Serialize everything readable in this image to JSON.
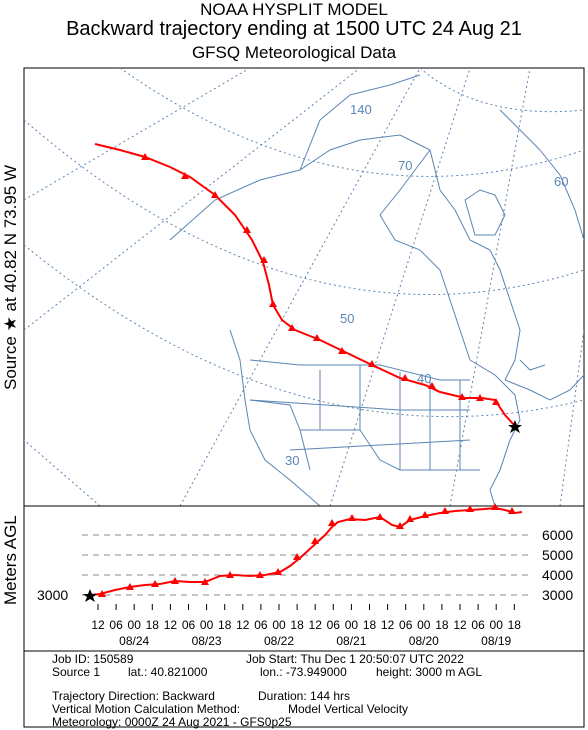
{
  "header": {
    "line1": "NOAA HYSPLIT MODEL",
    "line2": "Backward trajectory ending at 1500 UTC 24 Aug 21",
    "line3": "GFSQ Meteorological Data"
  },
  "source_label": "Source ★ at   40.82 N   73.95 W",
  "map": {
    "lat_labels": [
      "30",
      "40",
      "50",
      "70",
      "60"
    ],
    "lon_label": "140",
    "colors": {
      "coast": "#5b85b5",
      "trajectory": "#ff0000",
      "frame": "#000000"
    }
  },
  "height_panel": {
    "ylabel": "Meters AGL",
    "start_label": "3000",
    "level_labels": [
      "6000",
      "5000",
      "4000",
      "3000"
    ],
    "hour_ticks": [
      "12",
      "06",
      "00",
      "18",
      "12",
      "06",
      "00",
      "18",
      "12",
      "06",
      "00",
      "18",
      "12",
      "06",
      "00",
      "18",
      "12",
      "06",
      "00",
      "18",
      "12",
      "06",
      "00",
      "18"
    ],
    "dates": [
      "08/24",
      "08/23",
      "08/22",
      "08/21",
      "08/20",
      "08/19"
    ]
  },
  "info": {
    "job_id": "Job ID: 150589",
    "job_start": "Job Start: Thu Dec  1 20:50:07 UTC 2022",
    "source": "Source 1",
    "lat": "lat.: 40.821000",
    "lon": "lon.: -73.949000",
    "height": "height: 3000 m AGL",
    "direction": "Trajectory Direction: Backward",
    "duration": "Duration: 144 hrs",
    "vertical_label": "Vertical Motion Calculation Method:",
    "vertical_value": "Model Vertical Velocity",
    "meteorology": "Meteorology: 0000Z 24 Aug 2021 - GFS0p25"
  }
}
